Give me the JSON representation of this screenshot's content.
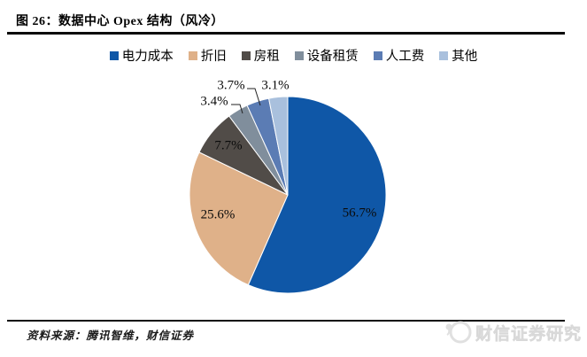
{
  "figure": {
    "title": "图 26：数据中心 Opex 结构（风冷）",
    "source": "资料来源：腾讯智维，财信证券",
    "watermark": "财信证券研究"
  },
  "chart_data": {
    "type": "pie",
    "title": "数据中心 Opex 结构（风冷）",
    "categories": [
      "电力成本",
      "折旧",
      "房租",
      "设备租赁",
      "人工费",
      "其他"
    ],
    "values": [
      56.7,
      25.6,
      7.7,
      3.4,
      3.7,
      3.1
    ],
    "unit": "%",
    "slice_labels": [
      "56.7%",
      "25.6%",
      "7.7%",
      "3.4%",
      "3.7%",
      "3.1%"
    ],
    "colors": [
      "#0F57A7",
      "#DFB189",
      "#514C48",
      "#808E9C",
      "#5B7CB4",
      "#A9C0DD"
    ],
    "legend_position": "top",
    "start_angle_deg": 0,
    "direction": "clockwise"
  }
}
